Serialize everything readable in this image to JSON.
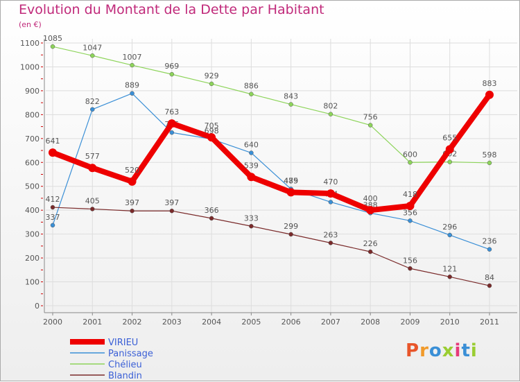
{
  "header": {
    "title": "Evolution du Montant de la Dette par Habitant",
    "unit": "(en €)"
  },
  "logo": {
    "text": "Proxiti",
    "letters": [
      "P",
      "r",
      "o",
      "x",
      "i",
      "t",
      "i"
    ],
    "colors": [
      "#e8552a",
      "#f19a2a",
      "#3a8fd6",
      "#9acd32",
      "#e63a7a",
      "#3a8fd6",
      "#9acd32"
    ]
  },
  "chart_data": {
    "type": "line",
    "title": "Evolution du Montant de la Dette par Habitant",
    "ylabel": "(en €)",
    "x": [
      "2000",
      "2001",
      "2002",
      "2003",
      "2004",
      "2005",
      "2006",
      "2007",
      "2008",
      "2009",
      "2010",
      "2011"
    ],
    "ylim": [
      0,
      1100
    ],
    "yticks": [
      0,
      100,
      200,
      300,
      400,
      500,
      600,
      700,
      800,
      900,
      1000,
      1100
    ],
    "grid": true,
    "legend_position": "bottom-left",
    "series": [
      {
        "name": "VIRIEU",
        "color": "#ee0000",
        "values": [
          641,
          577,
          520,
          763,
          705,
          539,
          475,
          470,
          400,
          418,
          655,
          883
        ]
      },
      {
        "name": "Panissage",
        "color": "#3a8fd6",
        "values": [
          337,
          822,
          889,
          725,
          698,
          640,
          489,
          434,
          388,
          356,
          296,
          236
        ]
      },
      {
        "name": "Chélieu",
        "color": "#8dd45a",
        "values": [
          1085,
          1047,
          1007,
          969,
          929,
          886,
          843,
          802,
          756,
          600,
          602,
          598
        ]
      },
      {
        "name": "Blandin",
        "color": "#7a2a2a",
        "values": [
          412,
          405,
          397,
          397,
          366,
          333,
          299,
          263,
          226,
          156,
          121,
          84
        ]
      }
    ]
  }
}
